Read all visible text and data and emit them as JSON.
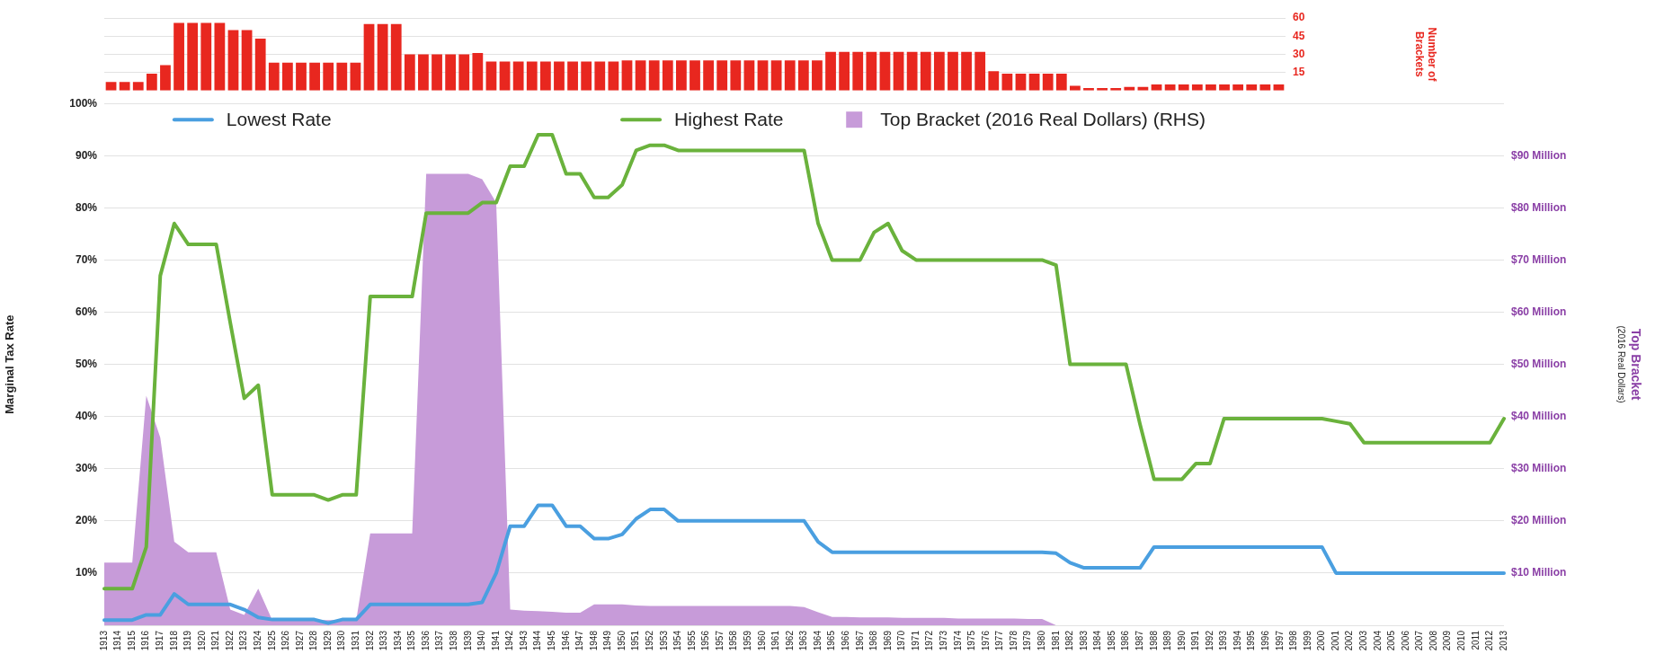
{
  "chart_data": [
    {
      "type": "bar",
      "ylabel": "Number of Brackets",
      "categories": [
        null,
        null,
        null,
        null,
        null,
        null,
        null,
        null,
        null,
        null,
        null,
        null,
        null,
        null,
        null,
        null,
        null,
        null,
        null,
        null,
        null,
        null,
        null,
        null,
        null,
        null,
        null,
        null,
        null,
        null,
        null,
        null,
        null,
        null,
        null,
        null,
        null,
        null,
        null,
        null,
        null,
        null,
        null,
        null,
        null,
        null,
        null,
        null,
        null,
        null,
        null,
        null,
        null,
        null,
        null,
        null,
        null,
        null,
        null,
        null,
        null,
        null,
        null,
        null,
        null,
        null,
        null,
        null,
        null,
        null,
        null,
        null,
        null,
        null,
        null,
        null,
        null,
        null,
        null,
        null,
        null,
        null,
        null,
        null,
        null,
        null,
        null
      ],
      "series": [
        {
          "color": "#e8271f",
          "values": [
            7,
            7,
            7,
            14,
            21,
            56,
            56,
            56,
            56,
            50,
            50,
            43,
            23,
            23,
            23,
            23,
            23,
            23,
            23,
            55,
            55,
            55,
            30,
            30,
            30,
            30,
            30,
            31,
            24,
            24,
            24,
            24,
            24,
            24,
            24,
            24,
            24,
            24,
            25,
            25,
            25,
            25,
            25,
            25,
            25,
            25,
            25,
            25,
            25,
            25,
            25,
            25,
            25,
            32,
            32,
            32,
            32,
            32,
            32,
            32,
            32,
            32,
            32,
            32,
            32,
            16,
            14,
            14,
            14,
            14,
            14,
            4,
            2,
            2,
            2,
            3,
            3,
            5,
            5,
            5,
            5,
            5,
            5,
            5,
            5,
            5,
            5
          ]
        }
      ],
      "ylim": [
        0,
        60
      ],
      "yticks": [
        15,
        30,
        45,
        60
      ],
      "grid": "y",
      "tick_labels": "y"
    },
    {
      "type": "line",
      "ylabel": "Marginal Tax Rate",
      "y2label": "Top Bracket",
      "annotations": [
        "(2016 Real Dollars)"
      ],
      "categories": [
        "1913",
        "1914",
        "1915",
        "1916",
        "1917",
        "1918",
        "1919",
        "1920",
        "1921",
        "1922",
        "1923",
        "1924",
        "1925",
        "1926",
        "1927",
        "1928",
        "1929",
        "1930",
        "1931",
        "1932",
        "1933",
        "1934",
        "1935",
        "1936",
        "1937",
        "1938",
        "1939",
        "1940",
        "1941",
        "1942",
        "1943",
        "1944",
        "1945",
        "1946",
        "1947",
        "1948",
        "1949",
        "1950",
        "1951",
        "1952",
        "1953",
        "1954",
        "1955",
        "1956",
        "1957",
        "1958",
        "1959",
        "1960",
        "1961",
        "1962",
        "1963",
        "1964",
        "1965",
        "1966",
        "1967",
        "1968",
        "1969",
        "1970",
        "1971",
        "1972",
        "1973",
        "1974",
        "1975",
        "1976",
        "1977",
        "1978",
        "1979",
        "1980",
        "1981",
        "1982",
        "1983",
        "1984",
        "1985",
        "1986",
        "1987",
        "1988",
        "1989",
        "1990",
        "1991",
        "1992",
        "1993",
        "1994",
        "1995",
        "1996",
        "1997",
        "1998",
        "1999",
        "2000",
        "2001",
        "2002",
        "2003",
        "2004",
        "2005",
        "2006",
        "2007",
        "2008",
        "2009",
        "2010",
        "2011",
        "2012",
        "2013"
      ],
      "series": [
        {
          "name": "Lowest Rate",
          "type": "line",
          "color": "#4a9fe0",
          "values": [
            1,
            1,
            1,
            2,
            2,
            6,
            4,
            4,
            4,
            4,
            3,
            1.5,
            1.1,
            1.1,
            1.1,
            1.1,
            0.4,
            1.1,
            1.1,
            4,
            4,
            4,
            4,
            4,
            4,
            4,
            4,
            4.4,
            10,
            19,
            19,
            23,
            23,
            19,
            19,
            16.6,
            16.6,
            17.4,
            20.4,
            22.2,
            22.2,
            20,
            20,
            20,
            20,
            20,
            20,
            20,
            20,
            20,
            20,
            16,
            14,
            14,
            14,
            14,
            14,
            14,
            14,
            14,
            14,
            14,
            14,
            14,
            14,
            14,
            14,
            14,
            13.8,
            12,
            11,
            11,
            11,
            11,
            11,
            15,
            15,
            15,
            15,
            15,
            15,
            15,
            15,
            15,
            15,
            15,
            15,
            15,
            10,
            10,
            10,
            10,
            10,
            10,
            10,
            10,
            10,
            10,
            10,
            10,
            10
          ]
        },
        {
          "name": "Highest Rate",
          "type": "line",
          "color": "#6ab23c",
          "values": [
            7,
            7,
            7,
            15,
            67,
            77,
            73,
            73,
            73,
            58,
            43.5,
            46,
            25,
            25,
            25,
            25,
            24,
            25,
            25,
            63,
            63,
            63,
            63,
            79,
            79,
            79,
            79,
            81,
            81,
            88,
            88,
            94,
            94,
            86.5,
            86.5,
            82,
            82,
            84.4,
            91,
            92,
            92,
            91,
            91,
            91,
            91,
            91,
            91,
            91,
            91,
            91,
            91,
            77,
            70,
            70,
            70,
            75.3,
            77,
            71.8,
            70,
            70,
            70,
            70,
            70,
            70,
            70,
            70,
            70,
            70,
            69,
            50,
            50,
            50,
            50,
            50,
            38.5,
            28,
            28,
            28,
            31,
            31,
            39.6,
            39.6,
            39.6,
            39.6,
            39.6,
            39.6,
            39.6,
            39.6,
            39.1,
            38.6,
            35,
            35,
            35,
            35,
            35,
            35,
            35,
            35,
            35,
            35,
            39.6
          ]
        },
        {
          "name": "Top Bracket (2016 Real Dollars) (RHS)",
          "type": "area",
          "axis": "y2",
          "color": "#c79bd9",
          "values": [
            12,
            12,
            12,
            44,
            36,
            16,
            14,
            14,
            14,
            3,
            2,
            7,
            1,
            1,
            1,
            1,
            1,
            1,
            1,
            17.6,
            17.6,
            17.6,
            17.6,
            86.5,
            86.5,
            86.5,
            86.5,
            85.5,
            81,
            3,
            2.8,
            2.7,
            2.6,
            2.4,
            2.4,
            4,
            4,
            4,
            3.8,
            3.7,
            3.7,
            3.7,
            3.7,
            3.7,
            3.7,
            3.7,
            3.7,
            3.7,
            3.7,
            3.7,
            3.5,
            2.5,
            1.6,
            1.6,
            1.5,
            1.5,
            1.5,
            1.4,
            1.4,
            1.4,
            1.4,
            1.3,
            1.3,
            1.3,
            1.3,
            1.3,
            1.2,
            1.2,
            0,
            0,
            0,
            0,
            0,
            0,
            0,
            0,
            0,
            0,
            0,
            0,
            0,
            0,
            0,
            0,
            0,
            0,
            0,
            0,
            0,
            0,
            0,
            0,
            0,
            0,
            0,
            0,
            0,
            0,
            0,
            0,
            0
          ]
        }
      ],
      "ylim": [
        0,
        100
      ],
      "yticks": [
        {
          "value": 0,
          "label": null
        },
        {
          "value": 10,
          "label": "10%"
        },
        {
          "value": 20,
          "label": "20%"
        },
        {
          "value": 30,
          "label": "30%"
        },
        {
          "value": 40,
          "label": "40%"
        },
        {
          "value": 50,
          "label": "50%"
        },
        {
          "value": 60,
          "label": "60%"
        },
        {
          "value": 70,
          "label": "70%"
        },
        {
          "value": 80,
          "label": "80%"
        },
        {
          "value": 90,
          "label": "90%"
        },
        {
          "value": 100,
          "label": "100%"
        }
      ],
      "y2lim": [
        0,
        100
      ],
      "y2ticks": [
        {
          "value": 0,
          "label": null
        },
        {
          "value": 10,
          "label": "$10 Million"
        },
        {
          "value": 20,
          "label": "$20 Million"
        },
        {
          "value": 30,
          "label": "$30 Million"
        },
        {
          "value": 40,
          "label": "$40 Million"
        },
        {
          "value": 50,
          "label": "$50 Million"
        },
        {
          "value": 60,
          "label": "$60 Million"
        },
        {
          "value": 70,
          "label": "$70 Million"
        },
        {
          "value": 80,
          "label": "$80 Million"
        },
        {
          "value": 90,
          "label": "$90 Million"
        },
        {
          "value": 100,
          "label": null
        }
      ],
      "grid": "y",
      "legend": "top",
      "marker": "none",
      "line_style": "solid"
    }
  ]
}
